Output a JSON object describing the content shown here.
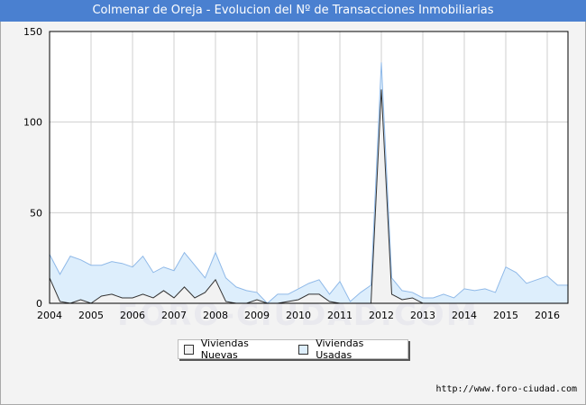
{
  "title": "Colmenar de Oreja - Evolucion del Nº de Transacciones Inmobiliarias",
  "watermark": "FORO-CIUDAD.COM",
  "footer": "http://www.foro-ciudad.com",
  "colors": {
    "title_bg": "#4a80d0",
    "usadas_fill": "#ddeefc",
    "usadas_line": "#8fb9e8",
    "nuevas_fill": "#f2f2f2",
    "nuevas_line": "#333333"
  },
  "chart_data": {
    "type": "area",
    "x": [
      2004.0,
      2004.25,
      2004.5,
      2004.75,
      2005.0,
      2005.25,
      2005.5,
      2005.75,
      2006.0,
      2006.25,
      2006.5,
      2006.75,
      2007.0,
      2007.25,
      2007.5,
      2007.75,
      2008.0,
      2008.25,
      2008.5,
      2008.75,
      2009.0,
      2009.25,
      2009.5,
      2009.75,
      2010.0,
      2010.25,
      2010.5,
      2010.75,
      2011.0,
      2011.25,
      2011.5,
      2011.75,
      2012.0,
      2012.25,
      2012.5,
      2012.75,
      2013.0,
      2013.25,
      2013.5,
      2013.75,
      2014.0,
      2014.25,
      2014.5,
      2014.75,
      2015.0,
      2015.25,
      2015.5,
      2015.75,
      2016.0,
      2016.25,
      2016.5
    ],
    "series": [
      {
        "name": "Viviendas Nuevas",
        "values": [
          14,
          1,
          0,
          2,
          0,
          4,
          5,
          3,
          3,
          5,
          3,
          7,
          3,
          9,
          3,
          6,
          13,
          1,
          0,
          0,
          2,
          0,
          0,
          1,
          2,
          5,
          5,
          1,
          0,
          0,
          0,
          0,
          118,
          5,
          2,
          3,
          0,
          0,
          0,
          0,
          0,
          0,
          0,
          0,
          0,
          0,
          0,
          0,
          0,
          0,
          0
        ]
      },
      {
        "name": "Viviendas Usadas",
        "values": [
          27,
          16,
          26,
          24,
          21,
          21,
          23,
          22,
          20,
          26,
          17,
          20,
          18,
          28,
          21,
          14,
          28,
          14,
          9,
          7,
          6,
          0,
          5,
          5,
          8,
          11,
          13,
          5,
          12,
          1,
          6,
          10,
          133,
          14,
          7,
          6,
          3,
          3,
          5,
          3,
          8,
          7,
          8,
          6,
          20,
          17,
          11,
          13,
          15,
          10,
          10
        ]
      }
    ],
    "xlim": [
      2004,
      2016.5
    ],
    "ylim": [
      0,
      150
    ],
    "xticks": [
      "2004",
      "2005",
      "2006",
      "2007",
      "2008",
      "2009",
      "2010",
      "2011",
      "2012",
      "2013",
      "2014",
      "2015",
      "2016"
    ],
    "yticks": [
      "0",
      "50",
      "100",
      "150"
    ],
    "grid": true,
    "legend": "bottom-center"
  }
}
